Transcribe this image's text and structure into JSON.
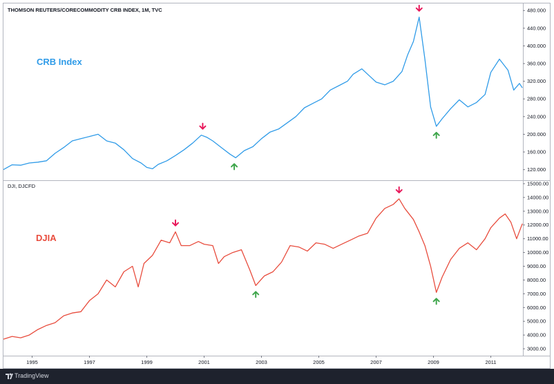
{
  "colors": {
    "crb_line": "#2f9be8",
    "djia_line": "#e84c3d",
    "peak_arrow": "#e8195b",
    "trough_arrow": "#3fa64c",
    "footer_bg": "#1e222d"
  },
  "footer": {
    "brand": "TradingView"
  },
  "chart_data": [
    {
      "type": "line",
      "title": "THOMSON REUTERS/CORECOMMODITY CRB INDEX, 1M, TVC",
      "annotation_label": "CRB Index",
      "ylim": [
        96,
        496
      ],
      "xlim": [
        1994.0,
        2012.12
      ],
      "yticks": [
        {
          "value": 120,
          "label": "120.000"
        },
        {
          "value": 160,
          "label": "160.000"
        },
        {
          "value": 200,
          "label": "200.000"
        },
        {
          "value": 240,
          "label": "240.000"
        },
        {
          "value": 280,
          "label": "280.000"
        },
        {
          "value": 320,
          "label": "320.000"
        },
        {
          "value": 360,
          "label": "360.000"
        },
        {
          "value": 400,
          "label": "400.000"
        },
        {
          "value": 440,
          "label": "440.000"
        },
        {
          "value": 480,
          "label": "480.000"
        }
      ],
      "series": [
        {
          "x": [
            1994.0,
            1994.3,
            1994.6,
            1994.9,
            1995.2,
            1995.5,
            1995.8,
            1996.1,
            1996.4,
            1996.7,
            1997.0,
            1997.3,
            1997.6,
            1997.9,
            1998.2,
            1998.5,
            1998.8,
            1999.0,
            1999.2,
            1999.4,
            1999.7,
            2000.0,
            2000.3,
            2000.6,
            2000.9,
            2001.1,
            2001.3,
            2001.6,
            2001.9,
            2002.1,
            2002.4,
            2002.7,
            2003.0,
            2003.3,
            2003.6,
            2003.9,
            2004.2,
            2004.5,
            2004.8,
            2005.1,
            2005.4,
            2005.7,
            2006.0,
            2006.2,
            2006.5,
            2006.8,
            2007.0,
            2007.3,
            2007.6,
            2007.9,
            2008.1,
            2008.3,
            2008.5,
            2008.7,
            2008.9,
            2009.1,
            2009.3,
            2009.6,
            2009.9,
            2010.2,
            2010.5,
            2010.8,
            2011.0,
            2011.3,
            2011.6,
            2011.8,
            2012.0,
            2012.1
          ],
          "y": [
            120,
            131,
            130,
            135,
            137,
            140,
            157,
            170,
            185,
            190,
            195,
            200,
            185,
            180,
            165,
            145,
            135,
            125,
            122,
            132,
            140,
            152,
            165,
            180,
            198,
            193,
            185,
            170,
            155,
            147,
            163,
            172,
            190,
            205,
            212,
            226,
            240,
            260,
            270,
            280,
            300,
            310,
            320,
            336,
            348,
            330,
            318,
            312,
            320,
            342,
            380,
            410,
            465,
            370,
            262,
            218,
            235,
            258,
            278,
            262,
            272,
            290,
            340,
            370,
            345,
            300,
            315,
            305
          ]
        }
      ],
      "annotations": [
        {
          "kind": "peak",
          "x": 2000.95,
          "y": 198
        },
        {
          "kind": "trough",
          "x": 2002.05,
          "y": 147
        },
        {
          "kind": "peak",
          "x": 2008.5,
          "y": 465
        },
        {
          "kind": "trough",
          "x": 2009.1,
          "y": 218
        }
      ]
    },
    {
      "type": "line",
      "title": "DJI, DJCFD",
      "annotation_label": "DJIA",
      "ylim": [
        2500,
        15200
      ],
      "xlim": [
        1994.0,
        2012.12
      ],
      "yticks": [
        {
          "value": 3000,
          "label": "3000.00"
        },
        {
          "value": 4000,
          "label": "4000.00"
        },
        {
          "value": 5000,
          "label": "5000.00"
        },
        {
          "value": 6000,
          "label": "6000.00"
        },
        {
          "value": 7000,
          "label": "7000.00"
        },
        {
          "value": 8000,
          "label": "8000.00"
        },
        {
          "value": 9000,
          "label": "9000.00"
        },
        {
          "value": 10000,
          "label": "10000.00"
        },
        {
          "value": 11000,
          "label": "11000.00"
        },
        {
          "value": 12000,
          "label": "12000.00"
        },
        {
          "value": 13000,
          "label": "13000.00"
        },
        {
          "value": 14000,
          "label": "14000.00"
        },
        {
          "value": 15000,
          "label": "15000.00"
        }
      ],
      "series": [
        {
          "x": [
            1994.0,
            1994.3,
            1994.6,
            1994.9,
            1995.2,
            1995.5,
            1995.8,
            1996.1,
            1996.4,
            1996.7,
            1997.0,
            1997.3,
            1997.6,
            1997.9,
            1998.2,
            1998.5,
            1998.7,
            1998.9,
            1999.2,
            1999.5,
            1999.8,
            2000.0,
            2000.2,
            2000.5,
            2000.8,
            2001.0,
            2001.3,
            2001.5,
            2001.7,
            2002.0,
            2002.3,
            2002.6,
            2002.8,
            2003.1,
            2003.4,
            2003.7,
            2004.0,
            2004.3,
            2004.6,
            2004.9,
            2005.2,
            2005.5,
            2005.8,
            2006.1,
            2006.4,
            2006.7,
            2007.0,
            2007.3,
            2007.6,
            2007.8,
            2008.0,
            2008.3,
            2008.5,
            2008.7,
            2008.9,
            2009.1,
            2009.3,
            2009.6,
            2009.9,
            2010.2,
            2010.5,
            2010.8,
            2011.0,
            2011.3,
            2011.5,
            2011.7,
            2011.9,
            2012.1
          ],
          "y": [
            3700,
            3900,
            3800,
            4000,
            4400,
            4700,
            4900,
            5400,
            5600,
            5700,
            6500,
            7000,
            8000,
            7500,
            8600,
            9000,
            7500,
            9200,
            9800,
            10900,
            10700,
            11500,
            10500,
            10500,
            10800,
            10600,
            10500,
            9200,
            9700,
            10000,
            10200,
            8700,
            7600,
            8300,
            8600,
            9300,
            10500,
            10400,
            10100,
            10700,
            10600,
            10300,
            10600,
            10900,
            11200,
            11400,
            12500,
            13200,
            13500,
            13900,
            13200,
            12400,
            11500,
            10500,
            9000,
            7100,
            8200,
            9500,
            10300,
            10700,
            10200,
            11000,
            11800,
            12500,
            12800,
            12200,
            11000,
            12100
          ]
        }
      ],
      "annotations": [
        {
          "kind": "peak",
          "x": 2000.0,
          "y": 11500
        },
        {
          "kind": "trough",
          "x": 2002.8,
          "y": 7600
        },
        {
          "kind": "peak",
          "x": 2007.8,
          "y": 13900
        },
        {
          "kind": "trough",
          "x": 2009.1,
          "y": 7100
        }
      ]
    }
  ],
  "xticks": [
    {
      "value": 1995,
      "label": "1995"
    },
    {
      "value": 1997,
      "label": "1997"
    },
    {
      "value": 1999,
      "label": "1999"
    },
    {
      "value": 2001,
      "label": "2001"
    },
    {
      "value": 2003,
      "label": "2003"
    },
    {
      "value": 2005,
      "label": "2005"
    },
    {
      "value": 2007,
      "label": "2007"
    },
    {
      "value": 2009,
      "label": "2009"
    },
    {
      "value": 2011,
      "label": "2011"
    }
  ]
}
